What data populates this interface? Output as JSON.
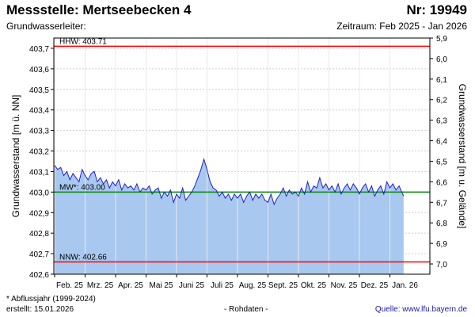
{
  "header": {
    "title": "Messstelle: Mertseebecken 4",
    "number": "Nr: 19949",
    "subtitle": "Grundwasserleiter:",
    "period": "Zeitraum: Feb 2025 - Jan 2026"
  },
  "footer": {
    "note": "* Abflussjahr (1999-2024)",
    "created": "erstellt:  15.01.2026",
    "raw": "- Rohdaten -",
    "source": "Quelle:  www.lfu.bayern.de"
  },
  "colors": {
    "area_fill": "#a9c8ef",
    "line": "#1f1fcc",
    "hhw": "#ff0000",
    "nnw": "#ff0000",
    "mw": "#008800",
    "grid": "#cfcfcf"
  },
  "chart_data": {
    "type": "area",
    "ylabel": "Grundwasserstand [m ü. NN]",
    "y2label": "Grundwasserstand [m u. Gelände]",
    "ylim": [
      402.6,
      403.75
    ],
    "y2lim": [
      5.9,
      7.05
    ],
    "yticks": [
      "402,6",
      "402,7",
      "402,8",
      "402,9",
      "403,0",
      "403,1",
      "403,2",
      "403,3",
      "403,4",
      "403,5",
      "403,6",
      "403,7"
    ],
    "y2ticks": [
      "5,9",
      "6,0",
      "6,1",
      "6,2",
      "6,3",
      "6,4",
      "6,5",
      "6,6",
      "6,7",
      "6,8",
      "6,9",
      "7,0"
    ],
    "xticks": [
      "Feb. 25",
      "Mrz. 25",
      "Apr. 25",
      "Mai 25",
      "Juni 25",
      "Juli 25",
      "Aug. 25",
      "Sept. 25",
      "Okt. 25",
      "Nov. 25",
      "Dez. 25",
      "Jan. 26"
    ],
    "grid": true,
    "reference_lines": [
      {
        "label": "HHW: 403.71",
        "value": 403.71
      },
      {
        "label": "MW*: 403.00",
        "value": 403.0
      },
      {
        "label": "NNW: 402.66",
        "value": 402.66
      }
    ],
    "series": [
      {
        "x": [
          0,
          0.1,
          0.2,
          0.3,
          0.4,
          0.5,
          0.6,
          0.7,
          0.8,
          0.9,
          1.0,
          1.1,
          1.2,
          1.3,
          1.4,
          1.5,
          1.6,
          1.7,
          1.8,
          1.9,
          2.0,
          2.1,
          2.2,
          2.3,
          2.4,
          2.5,
          2.6,
          2.7,
          2.8,
          2.9,
          3.0,
          3.1,
          3.2,
          3.3,
          3.4,
          3.5,
          3.6,
          3.7,
          3.8,
          3.9,
          4.0,
          4.1,
          4.2,
          4.3,
          4.4,
          4.5,
          4.6,
          4.7,
          4.8,
          4.9,
          5.0,
          5.1,
          5.2,
          5.3,
          5.4,
          5.5,
          5.6,
          5.7,
          5.8,
          5.9,
          6.0,
          6.1,
          6.2,
          6.3,
          6.4,
          6.5,
          6.6,
          6.7,
          6.8,
          6.9,
          7.0,
          7.1,
          7.2,
          7.3,
          7.4,
          7.5,
          7.6,
          7.7,
          7.8,
          7.9,
          8.0,
          8.1,
          8.2,
          8.3,
          8.4,
          8.5,
          8.6,
          8.7,
          8.8,
          8.9,
          9.0,
          9.1,
          9.2,
          9.3,
          9.4,
          9.5,
          9.6,
          9.7,
          9.8,
          9.9,
          10.0,
          10.1,
          10.2,
          10.3,
          10.4,
          10.5,
          10.6,
          10.7,
          10.8,
          10.9,
          11.0,
          11.1,
          11.2,
          11.3,
          11.45
        ],
        "values": [
          403.13,
          403.11,
          403.12,
          403.08,
          403.1,
          403.06,
          403.09,
          403.07,
          403.05,
          403.11,
          403.08,
          403.06,
          403.09,
          403.1,
          403.05,
          403.07,
          403.04,
          403.06,
          403.02,
          403.05,
          403.03,
          403.06,
          403.01,
          403.04,
          403.02,
          403.03,
          403.01,
          403.04,
          403.0,
          403.02,
          403.01,
          403.03,
          402.99,
          403.01,
          403.02,
          402.97,
          403.0,
          402.98,
          403.01,
          402.95,
          402.99,
          402.97,
          403.02,
          402.96,
          402.98,
          403.0,
          403.03,
          403.07,
          403.11,
          403.16,
          403.11,
          403.05,
          403.02,
          403.01,
          402.98,
          403.0,
          402.97,
          402.99,
          402.96,
          402.99,
          402.97,
          402.99,
          402.95,
          402.98,
          403.0,
          402.96,
          402.99,
          402.97,
          402.99,
          402.96,
          402.95,
          402.99,
          402.94,
          402.97,
          402.99,
          403.02,
          402.98,
          403.01,
          402.99,
          403.0,
          402.98,
          403.02,
          402.99,
          403.05,
          403.0,
          403.03,
          403.02,
          403.07,
          403.02,
          403.04,
          403.01,
          403.03,
          403.0,
          403.04,
          402.99,
          403.02,
          403.04,
          403.01,
          403.04,
          403.02,
          402.99,
          403.02,
          403.04,
          403.0,
          403.03,
          402.98,
          403.01,
          403.03,
          402.99,
          403.05,
          403.02,
          403.04,
          403.01,
          403.03,
          402.98
        ]
      }
    ]
  }
}
